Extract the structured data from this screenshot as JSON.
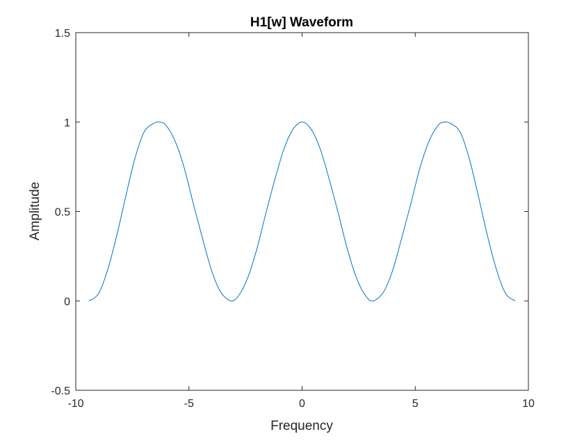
{
  "chart_data": {
    "type": "line",
    "title": "H1[w] Waveform",
    "xlabel": "Frequency",
    "ylabel": "Amplitude",
    "xlim": [
      -10,
      10
    ],
    "ylim": [
      -0.5,
      1.5
    ],
    "xticks": [
      -10,
      -5,
      0,
      5,
      10
    ],
    "yticks": [
      -0.5,
      0,
      0.5,
      1,
      1.5
    ],
    "xtick_labels": [
      "-10",
      "-5",
      "0",
      "5",
      "10"
    ],
    "ytick_labels": [
      "-0.5",
      "0",
      "0.5",
      "1",
      "1.5"
    ],
    "grid": false,
    "box": true,
    "series": [
      {
        "color": "#0072bd",
        "x": [
          -9.42,
          -9.0,
          -8.6,
          -8.2,
          -7.8,
          -7.4,
          -7.0,
          -6.6,
          -6.28,
          -6.0,
          -5.6,
          -5.2,
          -4.8,
          -4.4,
          -4.0,
          -3.6,
          -3.14,
          -2.8,
          -2.4,
          -2.0,
          -1.6,
          -1.2,
          -0.8,
          -0.4,
          0.0,
          0.4,
          0.8,
          1.2,
          1.6,
          2.0,
          2.4,
          2.8,
          3.14,
          3.6,
          4.0,
          4.4,
          4.8,
          5.2,
          5.6,
          6.0,
          6.28,
          6.6,
          7.0,
          7.4,
          7.8,
          8.2,
          8.6,
          9.0,
          9.42
        ],
        "y": [
          0.0,
          0.04,
          0.17,
          0.36,
          0.58,
          0.79,
          0.94,
          0.99,
          1.0,
          0.98,
          0.89,
          0.74,
          0.54,
          0.35,
          0.17,
          0.05,
          0.0,
          0.03,
          0.13,
          0.29,
          0.49,
          0.68,
          0.85,
          0.96,
          1.0,
          0.96,
          0.85,
          0.68,
          0.49,
          0.29,
          0.13,
          0.03,
          0.0,
          0.05,
          0.17,
          0.35,
          0.54,
          0.74,
          0.89,
          0.98,
          1.0,
          0.99,
          0.94,
          0.79,
          0.58,
          0.36,
          0.17,
          0.04,
          0.0
        ]
      }
    ]
  }
}
